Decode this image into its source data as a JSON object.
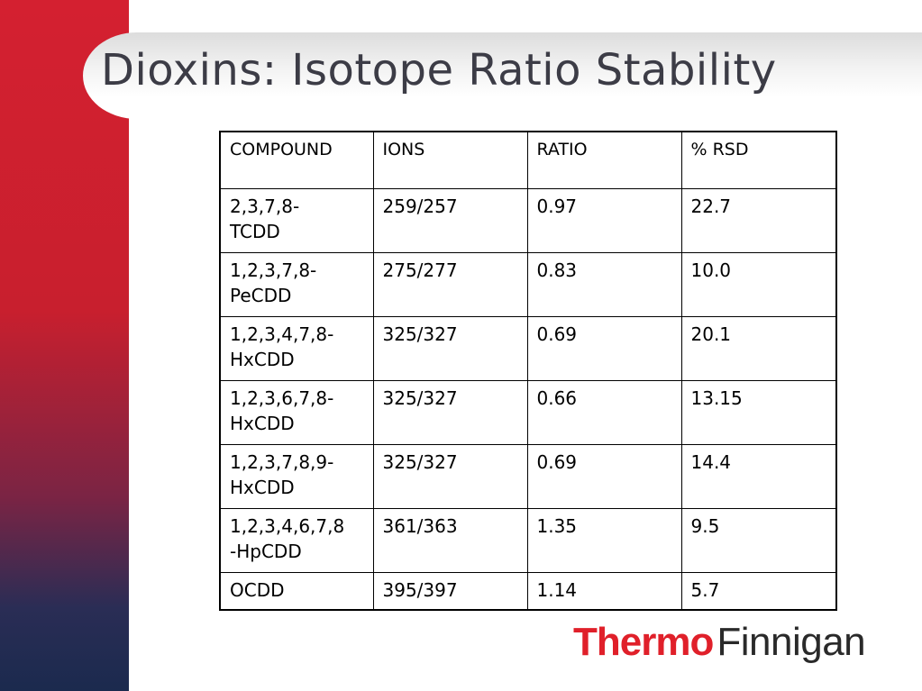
{
  "title": "Dioxins: Isotope Ratio Stability",
  "table": {
    "headers": [
      "COMPOUND",
      "IONS",
      "RATIO",
      "% RSD"
    ],
    "rows": [
      {
        "compound_line1": "2,3,7,8-",
        "compound_line2": "TCDD",
        "ions": "259/257",
        "ratio": "0.97",
        "rsd": "22.7"
      },
      {
        "compound_line1": "1,2,3,7,8-",
        "compound_line2": "PeCDD",
        "ions": "275/277",
        "ratio": "0.83",
        "rsd": "10.0"
      },
      {
        "compound_line1": "1,2,3,4,7,8-",
        "compound_line2": "HxCDD",
        "ions": "325/327",
        "ratio": "0.69",
        "rsd": "20.1"
      },
      {
        "compound_line1": "1,2,3,6,7,8-",
        "compound_line2": "HxCDD",
        "ions": "325/327",
        "ratio": "0.66",
        "rsd": "13.15"
      },
      {
        "compound_line1": "1,2,3,7,8,9-",
        "compound_line2": "HxCDD",
        "ions": "325/327",
        "ratio": "0.69",
        "rsd": "14.4"
      },
      {
        "compound_line1": "1,2,3,4,6,7,8",
        "compound_line2": "-HpCDD",
        "ions": "361/363",
        "ratio": "1.35",
        "rsd": "9.5"
      },
      {
        "compound_line1": "OCDD",
        "compound_line2": "",
        "ions": "395/397",
        "ratio": "1.14",
        "rsd": "5.7"
      }
    ]
  },
  "logo": {
    "part1": "Thermo",
    "part2": "Finnigan"
  },
  "colors": {
    "accent_red": "#d42030",
    "navy": "#1b2a4e",
    "title_text": "#3c3c46"
  }
}
